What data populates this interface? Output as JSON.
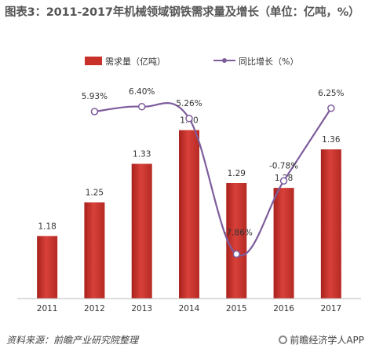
{
  "title": "图表3：2011-2017年机械领域钢铁需求量及增长（单位：亿吨，%）",
  "footer": {
    "source": "资料来源：前瞻产业研究院整理",
    "brand": "前瞻经济学人APP"
  },
  "chart_data": {
    "type": "bar",
    "categories": [
      "2011",
      "2012",
      "2013",
      "2014",
      "2015",
      "2016",
      "2017"
    ],
    "series": [
      {
        "name": "需求量（亿吨）",
        "type": "bar",
        "values": [
          1.18,
          1.25,
          1.33,
          1.4,
          1.29,
          1.28,
          1.36
        ],
        "labels": [
          "1.18",
          "1.25",
          "1.33",
          "1.40",
          "1.29",
          "1.28",
          "1.36"
        ],
        "color": "#c8302a"
      },
      {
        "name": "同比增长（%）",
        "type": "line",
        "values": [
          null,
          5.93,
          6.4,
          5.26,
          -7.86,
          -0.78,
          6.25
        ],
        "labels": [
          "",
          "5.93%",
          "6.40%",
          "5.26%",
          "-7.86%",
          "-0.78%",
          "6.25%"
        ],
        "color": "#7d5c9c"
      }
    ],
    "ylim": [
      1.05,
      1.45
    ],
    "y2lim": [
      -9.5,
      9.5
    ],
    "legend": "top",
    "grid": false
  }
}
